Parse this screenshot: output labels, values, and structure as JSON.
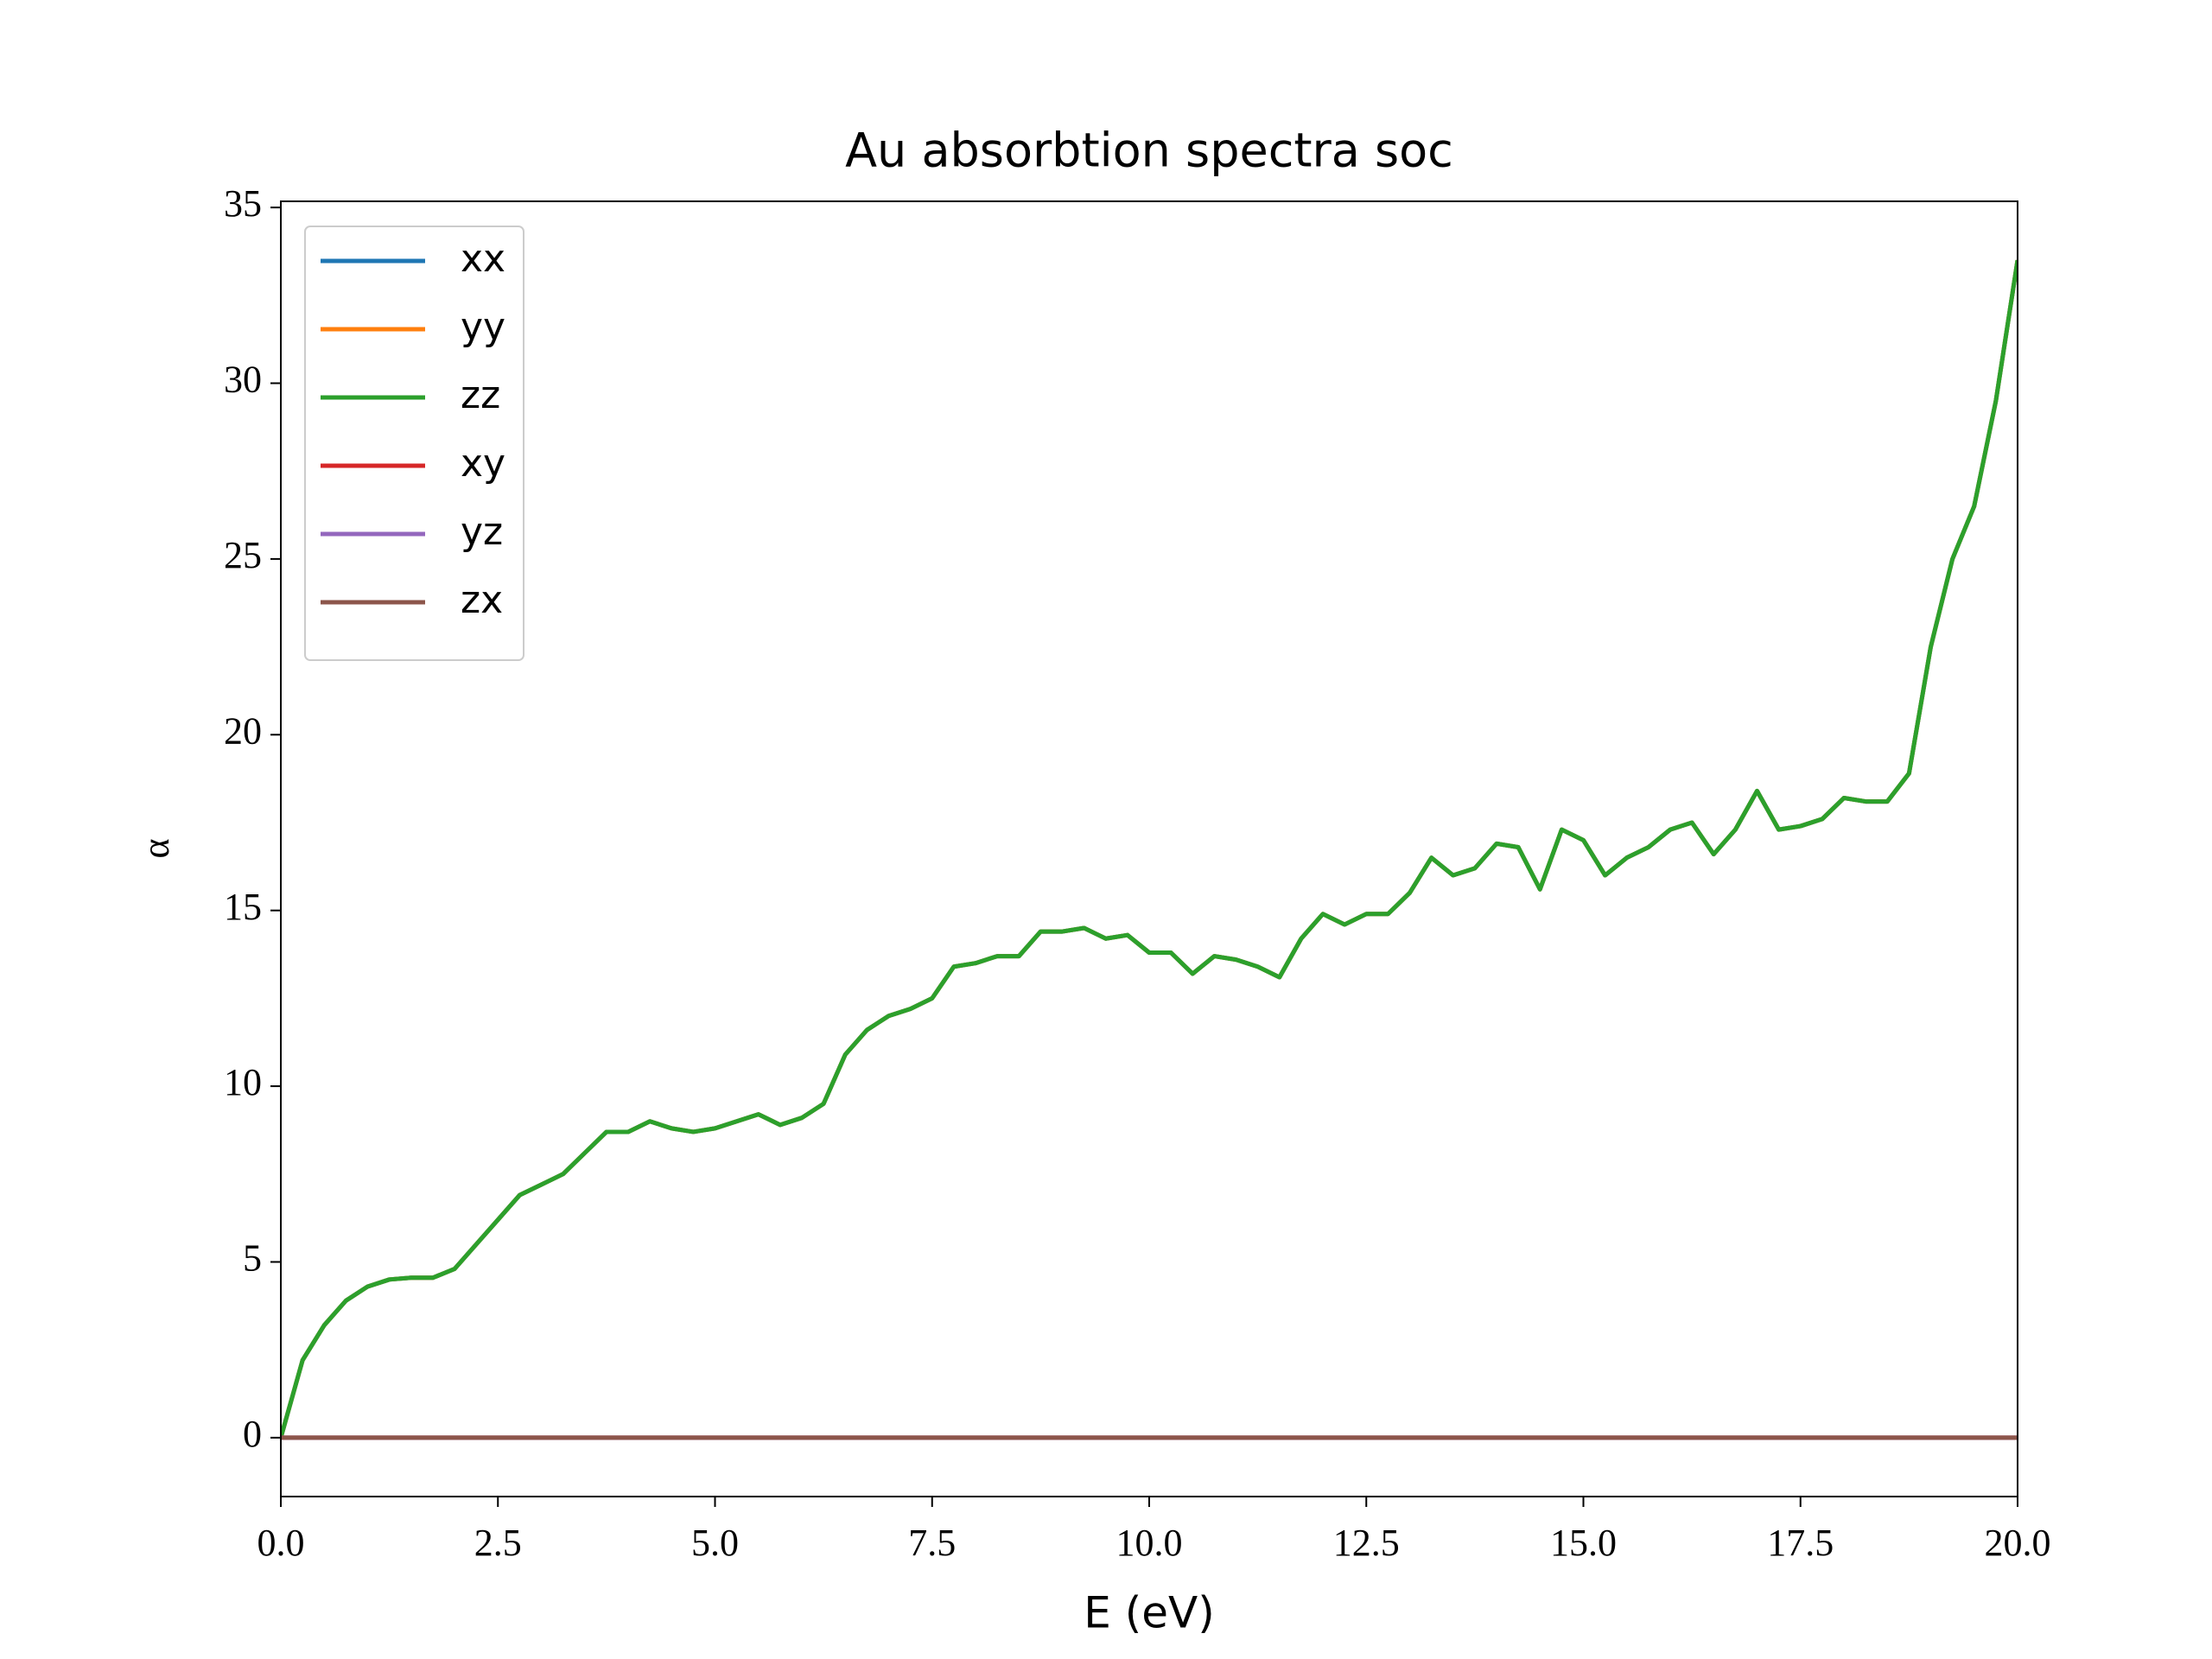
{
  "chart_data": {
    "type": "line",
    "title": "Au absorbtion spectra soc",
    "x_label": "E (eV)",
    "y_label": "α",
    "x": [
      0,
      0.25,
      0.5,
      0.75,
      1,
      1.25,
      1.5,
      1.75,
      2,
      2.25,
      2.5,
      2.75,
      3,
      3.25,
      3.5,
      3.75,
      4,
      4.25,
      4.5,
      4.75,
      5,
      5.25,
      5.5,
      5.75,
      6,
      6.25,
      6.5,
      6.75,
      7,
      7.25,
      7.5,
      7.75,
      8,
      8.25,
      8.5,
      8.75,
      9,
      9.25,
      9.5,
      9.75,
      10,
      10.25,
      10.5,
      10.75,
      11,
      11.25,
      11.5,
      11.75,
      12,
      12.25,
      12.5,
      12.75,
      13,
      13.25,
      13.5,
      13.75,
      14,
      14.25,
      14.5,
      14.75,
      15,
      15.25,
      15.5,
      15.75,
      16,
      16.25,
      16.5,
      16.75,
      17,
      17.25,
      17.5,
      17.75,
      18,
      18.25,
      18.5,
      18.75,
      19,
      19.25,
      19.5,
      19.75,
      20
    ],
    "series": [
      {
        "name": "xx",
        "color": "#1f77b4",
        "values": [
          0,
          2.2,
          3.2,
          3.9,
          4.3,
          4.5,
          4.55,
          4.55,
          4.8,
          5.5,
          6.2,
          6.9,
          7.2,
          7.5,
          8.1,
          8.7,
          8.7,
          9.0,
          8.8,
          8.7,
          8.8,
          9.0,
          9.2,
          8.9,
          9.1,
          9.5,
          10.9,
          11.6,
          12.0,
          12.2,
          12.5,
          13.4,
          13.5,
          13.7,
          13.7,
          14.4,
          14.4,
          14.5,
          14.2,
          14.3,
          13.8,
          13.8,
          13.2,
          13.7,
          13.6,
          13.4,
          13.1,
          14.2,
          14.9,
          14.6,
          14.9,
          14.9,
          15.5,
          16.5,
          16.0,
          16.2,
          16.9,
          16.8,
          15.6,
          17.3,
          17.0,
          16.0,
          16.5,
          16.8,
          17.3,
          17.5,
          16.6,
          17.3,
          18.4,
          17.3,
          17.4,
          17.6,
          18.2,
          18.1,
          18.1,
          18.9,
          22.5,
          25.0,
          26.5,
          29.5,
          33.5
        ]
      },
      {
        "name": "yy",
        "color": "#ff7f0e",
        "values": [
          0,
          2.2,
          3.2,
          3.9,
          4.3,
          4.5,
          4.55,
          4.55,
          4.8,
          5.5,
          6.2,
          6.9,
          7.2,
          7.5,
          8.1,
          8.7,
          8.7,
          9.0,
          8.8,
          8.7,
          8.8,
          9.0,
          9.2,
          8.9,
          9.1,
          9.5,
          10.9,
          11.6,
          12.0,
          12.2,
          12.5,
          13.4,
          13.5,
          13.7,
          13.7,
          14.4,
          14.4,
          14.5,
          14.2,
          14.3,
          13.8,
          13.8,
          13.2,
          13.7,
          13.6,
          13.4,
          13.1,
          14.2,
          14.9,
          14.6,
          14.9,
          14.9,
          15.5,
          16.5,
          16.0,
          16.2,
          16.9,
          16.8,
          15.6,
          17.3,
          17.0,
          16.0,
          16.5,
          16.8,
          17.3,
          17.5,
          16.6,
          17.3,
          18.4,
          17.3,
          17.4,
          17.6,
          18.2,
          18.1,
          18.1,
          18.9,
          22.5,
          25.0,
          26.5,
          29.5,
          33.5
        ]
      },
      {
        "name": "zz",
        "color": "#2ca02c",
        "values": [
          0,
          2.2,
          3.2,
          3.9,
          4.3,
          4.5,
          4.55,
          4.55,
          4.8,
          5.5,
          6.2,
          6.9,
          7.2,
          7.5,
          8.1,
          8.7,
          8.7,
          9.0,
          8.8,
          8.7,
          8.8,
          9.0,
          9.2,
          8.9,
          9.1,
          9.5,
          10.9,
          11.6,
          12.0,
          12.2,
          12.5,
          13.4,
          13.5,
          13.7,
          13.7,
          14.4,
          14.4,
          14.5,
          14.2,
          14.3,
          13.8,
          13.8,
          13.2,
          13.7,
          13.6,
          13.4,
          13.1,
          14.2,
          14.9,
          14.6,
          14.9,
          14.9,
          15.5,
          16.5,
          16.0,
          16.2,
          16.9,
          16.8,
          15.6,
          17.3,
          17.0,
          16.0,
          16.5,
          16.8,
          17.3,
          17.5,
          16.6,
          17.3,
          18.4,
          17.3,
          17.4,
          17.6,
          18.2,
          18.1,
          18.1,
          18.9,
          22.5,
          25.0,
          26.5,
          29.5,
          33.5
        ]
      },
      {
        "name": "xy",
        "color": "#d62728",
        "values": [
          0,
          0,
          0,
          0,
          0,
          0,
          0,
          0,
          0,
          0,
          0,
          0,
          0,
          0,
          0,
          0,
          0,
          0,
          0,
          0,
          0,
          0,
          0,
          0,
          0,
          0,
          0,
          0,
          0,
          0,
          0,
          0,
          0,
          0,
          0,
          0,
          0,
          0,
          0,
          0,
          0,
          0,
          0,
          0,
          0,
          0,
          0,
          0,
          0,
          0,
          0,
          0,
          0,
          0,
          0,
          0,
          0,
          0,
          0,
          0,
          0,
          0,
          0,
          0,
          0,
          0,
          0,
          0,
          0,
          0,
          0,
          0,
          0,
          0,
          0,
          0,
          0,
          0,
          0,
          0,
          0
        ]
      },
      {
        "name": "yz",
        "color": "#9467bd",
        "values": [
          0,
          0,
          0,
          0,
          0,
          0,
          0,
          0,
          0,
          0,
          0,
          0,
          0,
          0,
          0,
          0,
          0,
          0,
          0,
          0,
          0,
          0,
          0,
          0,
          0,
          0,
          0,
          0,
          0,
          0,
          0,
          0,
          0,
          0,
          0,
          0,
          0,
          0,
          0,
          0,
          0,
          0,
          0,
          0,
          0,
          0,
          0,
          0,
          0,
          0,
          0,
          0,
          0,
          0,
          0,
          0,
          0,
          0,
          0,
          0,
          0,
          0,
          0,
          0,
          0,
          0,
          0,
          0,
          0,
          0,
          0,
          0,
          0,
          0,
          0,
          0,
          0,
          0,
          0,
          0,
          0
        ]
      },
      {
        "name": "zx",
        "color": "#8c564b",
        "values": [
          0,
          0,
          0,
          0,
          0,
          0,
          0,
          0,
          0,
          0,
          0,
          0,
          0,
          0,
          0,
          0,
          0,
          0,
          0,
          0,
          0,
          0,
          0,
          0,
          0,
          0,
          0,
          0,
          0,
          0,
          0,
          0,
          0,
          0,
          0,
          0,
          0,
          0,
          0,
          0,
          0,
          0,
          0,
          0,
          0,
          0,
          0,
          0,
          0,
          0,
          0,
          0,
          0,
          0,
          0,
          0,
          0,
          0,
          0,
          0,
          0,
          0,
          0,
          0,
          0,
          0,
          0,
          0,
          0,
          0,
          0,
          0,
          0,
          0,
          0,
          0,
          0,
          0,
          0,
          0,
          0
        ]
      }
    ],
    "xlim": [
      0,
      20
    ],
    "ylim": [
      -1.675,
      35.175
    ],
    "xticks": [
      {
        "value": 0,
        "label": "0.0"
      },
      2.5,
      {
        "value": 5,
        "label": "5.0"
      },
      7.5,
      {
        "value": 10,
        "label": "10.0"
      },
      12.5,
      {
        "value": 15,
        "label": "15.0"
      },
      17.5,
      {
        "value": 20,
        "label": "20.0"
      }
    ],
    "yticks": [
      0,
      5,
      10,
      15,
      20,
      25,
      30,
      35
    ],
    "grid": false,
    "legend": "upper left"
  }
}
